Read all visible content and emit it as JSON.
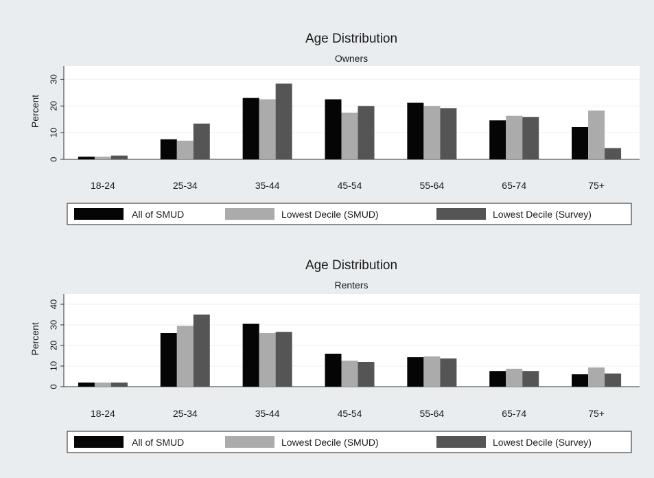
{
  "colors": {
    "background": "#e9edf0",
    "plot_background": "#ffffff",
    "gridline": "#eaf0f3",
    "axis": "#333333",
    "legend_border": "#222222"
  },
  "chart_data": [
    {
      "type": "bar",
      "title": "Age Distribution",
      "subtitle": "Owners",
      "xlabel": "",
      "ylabel": "Percent",
      "ylim": [
        0,
        35
      ],
      "yticks": [
        0,
        10,
        20,
        30
      ],
      "grid": true,
      "legend_position": "bottom",
      "categories": [
        "18-24",
        "25-34",
        "35-44",
        "45-54",
        "55-64",
        "65-74",
        "75+"
      ],
      "series": [
        {
          "name": "All of SMUD",
          "color": "#050505",
          "values": [
            1,
            7.5,
            23,
            22.5,
            21.2,
            14.6,
            12.1
          ]
        },
        {
          "name": "Lowest Decile (SMUD)",
          "color": "#ababab",
          "values": [
            1,
            7,
            22.5,
            17.5,
            20,
            16.3,
            18.3
          ]
        },
        {
          "name": "Lowest Decile (Survey)",
          "color": "#555555",
          "values": [
            1.4,
            13.4,
            28.4,
            20,
            19.2,
            15.9,
            4.2
          ]
        }
      ]
    },
    {
      "type": "bar",
      "title": "Age Distribution",
      "subtitle": "Renters",
      "xlabel": "",
      "ylabel": "Percent",
      "ylim": [
        0,
        45
      ],
      "yticks": [
        0,
        10,
        20,
        30,
        40
      ],
      "grid": true,
      "legend_position": "bottom",
      "categories": [
        "18-24",
        "25-34",
        "35-44",
        "45-54",
        "55-64",
        "65-74",
        "75+"
      ],
      "series": [
        {
          "name": "All of SMUD",
          "color": "#050505",
          "values": [
            2,
            26,
            30.5,
            16,
            14.3,
            7.6,
            6
          ]
        },
        {
          "name": "Lowest Decile (SMUD)",
          "color": "#ababab",
          "values": [
            2,
            29.5,
            26,
            12.6,
            14.7,
            8.7,
            9.3
          ]
        },
        {
          "name": "Lowest Decile (Survey)",
          "color": "#555555",
          "values": [
            2,
            35,
            26.6,
            12,
            13.7,
            7.6,
            6.4
          ]
        }
      ]
    }
  ]
}
